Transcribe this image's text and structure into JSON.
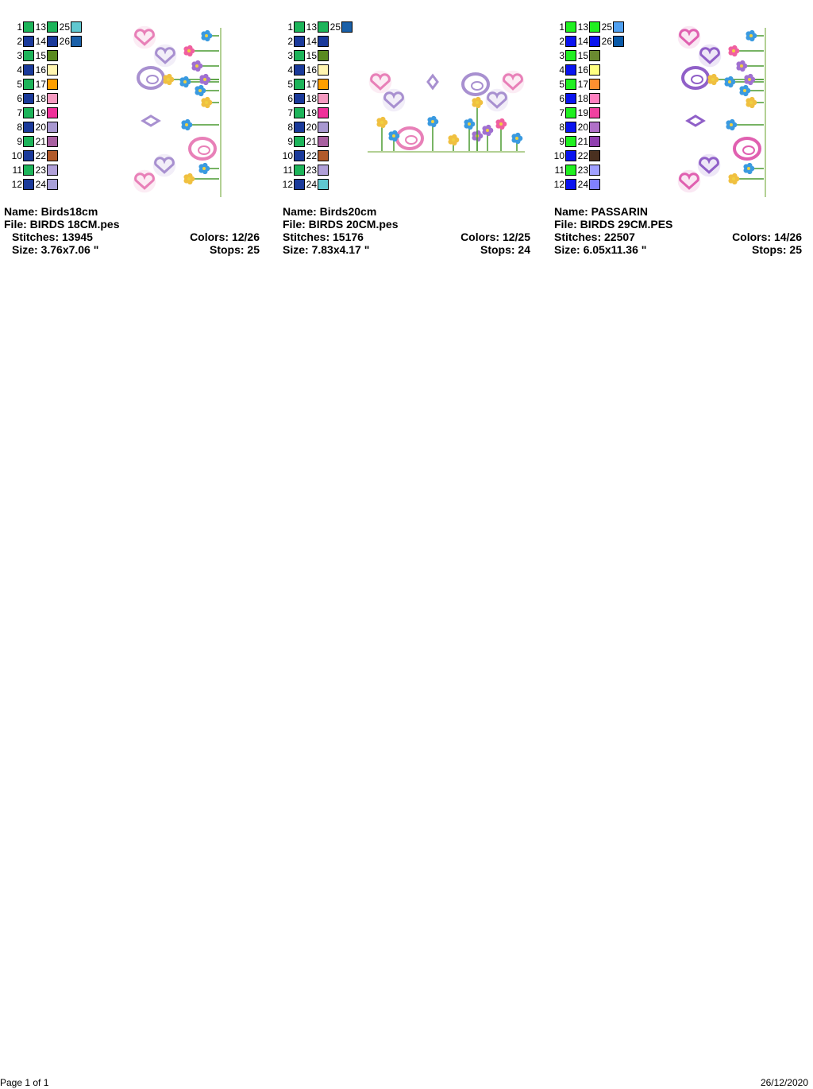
{
  "designs": [
    {
      "name": "Name: Birds18cm",
      "file": "File: BIRDS 18CM.pes",
      "stitches": "Stitches: 13945",
      "colors": "Colors: 12/26",
      "size": "Size: 3.76x7.06 \"",
      "stops": "Stops: 25",
      "orientation": "vertical",
      "swatches": [
        {
          "n": "1",
          "color": "#1db45a"
        },
        {
          "n": "2",
          "color": "#1a3a9a"
        },
        {
          "n": "3",
          "color": "#1db45a"
        },
        {
          "n": "4",
          "color": "#1a3a9a"
        },
        {
          "n": "5",
          "color": "#1db45a"
        },
        {
          "n": "6",
          "color": "#1a3a9a"
        },
        {
          "n": "7",
          "color": "#1db45a"
        },
        {
          "n": "8",
          "color": "#1a3a9a"
        },
        {
          "n": "9",
          "color": "#1db45a"
        },
        {
          "n": "10",
          "color": "#1a3a9a"
        },
        {
          "n": "11",
          "color": "#1db45a"
        },
        {
          "n": "12",
          "color": "#1a3a9a"
        },
        {
          "n": "13",
          "color": "#1db45a"
        },
        {
          "n": "14",
          "color": "#1a3a9a"
        },
        {
          "n": "15",
          "color": "#5a8a20"
        },
        {
          "n": "16",
          "color": "#fff5b0"
        },
        {
          "n": "17",
          "color": "#ff9f00"
        },
        {
          "n": "18",
          "color": "#f59ac0"
        },
        {
          "n": "19",
          "color": "#f0309a"
        },
        {
          "n": "20",
          "color": "#a898d0"
        },
        {
          "n": "21",
          "color": "#a860a0"
        },
        {
          "n": "22",
          "color": "#b05a2a"
        },
        {
          "n": "23",
          "color": "#b0a0d8"
        },
        {
          "n": "24",
          "color": "#a8a0d8"
        },
        {
          "n": "25",
          "color": "#60c8d0"
        },
        {
          "n": "26",
          "color": "#1a60a8"
        }
      ]
    },
    {
      "name": "Name: Birds20cm",
      "file": "File: BIRDS 20CM.pes",
      "stitches": "Stitches: 15176",
      "colors": "Colors: 12/25",
      "size": "Size: 7.83x4.17 \"",
      "stops": "Stops: 24",
      "orientation": "horizontal",
      "swatches": [
        {
          "n": "1",
          "color": "#1db45a"
        },
        {
          "n": "2",
          "color": "#1a3a9a"
        },
        {
          "n": "3",
          "color": "#1db45a"
        },
        {
          "n": "4",
          "color": "#1a3a9a"
        },
        {
          "n": "5",
          "color": "#1db45a"
        },
        {
          "n": "6",
          "color": "#1a3a9a"
        },
        {
          "n": "7",
          "color": "#1db45a"
        },
        {
          "n": "8",
          "color": "#1a3a9a"
        },
        {
          "n": "9",
          "color": "#1db45a"
        },
        {
          "n": "10",
          "color": "#1a3a9a"
        },
        {
          "n": "11",
          "color": "#1db45a"
        },
        {
          "n": "12",
          "color": "#1a3a9a"
        },
        {
          "n": "13",
          "color": "#1db45a"
        },
        {
          "n": "14",
          "color": "#1a3a9a"
        },
        {
          "n": "15",
          "color": "#5a8a20"
        },
        {
          "n": "16",
          "color": "#fff5b0"
        },
        {
          "n": "17",
          "color": "#ff9f00"
        },
        {
          "n": "18",
          "color": "#f59ac0"
        },
        {
          "n": "19",
          "color": "#f0309a"
        },
        {
          "n": "20",
          "color": "#a898d0"
        },
        {
          "n": "21",
          "color": "#a860a0"
        },
        {
          "n": "22",
          "color": "#b05a2a"
        },
        {
          "n": "23",
          "color": "#b0a0d8"
        },
        {
          "n": "24",
          "color": "#60c8d0"
        },
        {
          "n": "25",
          "color": "#1a60a8"
        }
      ]
    },
    {
      "name": "Name: PASSARIN",
      "file": "File: BIRDS 29CM.PES",
      "stitches": "Stitches: 22507",
      "colors": "Colors: 14/26",
      "size": "Size: 6.05x11.36 \"",
      "stops": "Stops: 25",
      "orientation": "vertical",
      "swatches": [
        {
          "n": "1",
          "color": "#20f020"
        },
        {
          "n": "2",
          "color": "#0a14f0"
        },
        {
          "n": "3",
          "color": "#20f020"
        },
        {
          "n": "4",
          "color": "#0a14f0"
        },
        {
          "n": "5",
          "color": "#20f020"
        },
        {
          "n": "6",
          "color": "#0a14f0"
        },
        {
          "n": "7",
          "color": "#20f020"
        },
        {
          "n": "8",
          "color": "#0a14f0"
        },
        {
          "n": "9",
          "color": "#20f020"
        },
        {
          "n": "10",
          "color": "#0a14f0"
        },
        {
          "n": "11",
          "color": "#20f020"
        },
        {
          "n": "12",
          "color": "#0a14f0"
        },
        {
          "n": "13",
          "color": "#20f020"
        },
        {
          "n": "14",
          "color": "#0a14f0"
        },
        {
          "n": "15",
          "color": "#6a8a30"
        },
        {
          "n": "16",
          "color": "#ffff80"
        },
        {
          "n": "17",
          "color": "#ff9030"
        },
        {
          "n": "18",
          "color": "#ff80c0"
        },
        {
          "n": "19",
          "color": "#f040a0"
        },
        {
          "n": "20",
          "color": "#b070c8"
        },
        {
          "n": "21",
          "color": "#9040b0"
        },
        {
          "n": "22",
          "color": "#4a3020"
        },
        {
          "n": "23",
          "color": "#a0a0ff"
        },
        {
          "n": "24",
          "color": "#8080ff"
        },
        {
          "n": "25",
          "color": "#50a0f0"
        },
        {
          "n": "26",
          "color": "#0a5aa8"
        }
      ]
    }
  ],
  "footer": {
    "page": "Page 1 of 1",
    "date": "26/12/2020"
  }
}
